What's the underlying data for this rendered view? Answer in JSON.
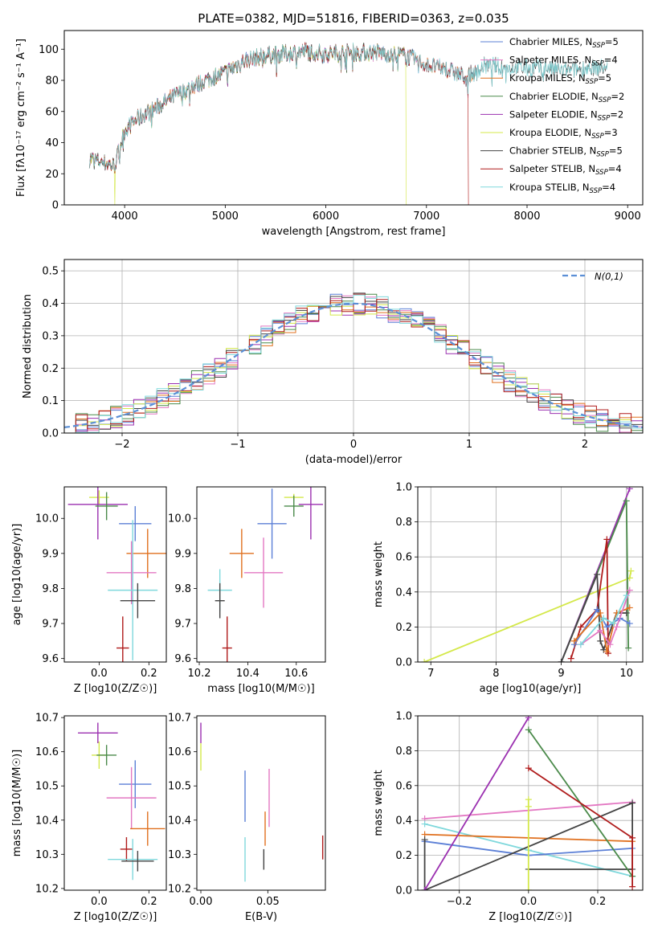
{
  "title": "PLATE=0382, MJD=51816, FIBERID=0363, z=0.035",
  "colors": {
    "chabrier_miles": "#5b7fd6",
    "salpeter_miles": "#e377c2",
    "kroupa_miles": "#e0701f",
    "chabrier_elodie": "#4a8a4a",
    "salpeter_elodie": "#9b30b0",
    "kroupa_elodie": "#d4e84a",
    "chabrier_stelib": "#444444",
    "salpeter_stelib": "#b01c1c",
    "kroupa_stelib": "#7fd8dc"
  },
  "chart_data": [
    {
      "id": "spectrum",
      "type": "line",
      "xlabel": "wavelength [Angstrom, rest frame]",
      "ylabel": "Flux [fλ10⁻¹⁷ erg cm⁻² s⁻¹ A⁻¹]",
      "xlim": [
        3400,
        9150
      ],
      "ylim": [
        0,
        112
      ],
      "xticks": [
        "4000",
        "5000",
        "6000",
        "7000",
        "8000",
        "9000"
      ],
      "yticks": [
        "0",
        "20",
        "40",
        "60",
        "80",
        "100"
      ],
      "legend": "top-right",
      "continuum": {
        "x": [
          3650,
          3800,
          3900,
          4000,
          4100,
          4300,
          4500,
          4800,
          5000,
          5200,
          5400,
          5600,
          5800,
          6000,
          6200,
          6500,
          6800,
          7000,
          7200,
          7400,
          7600,
          7800,
          8000,
          8200,
          8400,
          8600,
          8800
        ],
        "y": [
          30,
          27,
          25,
          48,
          54,
          62,
          70,
          80,
          85,
          93,
          96,
          97,
          99,
          97,
          98,
          98,
          96,
          90,
          87,
          82,
          90,
          88,
          88,
          88,
          86,
          88,
          88
        ]
      },
      "series": [
        {
          "name": "Chabrier MILES, N_SSP=5",
          "label": "Chabrier MILES, N",
          "sub": "SSP",
          "eq": "=5",
          "color_key": "chabrier_miles",
          "xmax": 7500
        },
        {
          "name": "Salpeter MILES, N_SSP=4",
          "label": "Salpeter MILES, N",
          "sub": "SSP",
          "eq": "=4",
          "color_key": "salpeter_miles",
          "xmax": 7500
        },
        {
          "name": "Kroupa MILES, N_SSP=5",
          "label": "Kroupa MILES, N",
          "sub": "SSP",
          "eq": "=5",
          "color_key": "kroupa_miles",
          "xmax": 7500
        },
        {
          "name": "Chabrier ELODIE, N_SSP=2",
          "label": "Chabrier ELODIE, N",
          "sub": "SSP",
          "eq": "=2",
          "color_key": "chabrier_elodie",
          "xmax": 6800
        },
        {
          "name": "Salpeter ELODIE, N_SSP=2",
          "label": "Salpeter ELODIE, N",
          "sub": "SSP",
          "eq": "=2",
          "color_key": "salpeter_elodie",
          "xmax": 6800
        },
        {
          "name": "Kroupa ELODIE, N_SSP=3",
          "label": "Kroupa ELODIE, N",
          "sub": "SSP",
          "eq": "=3",
          "color_key": "kroupa_elodie",
          "xmax": 6800,
          "drop_at": [
            3900,
            6800
          ]
        },
        {
          "name": "Chabrier STELIB, N_SSP=5",
          "label": "Chabrier STELIB, N",
          "sub": "SSP",
          "eq": "=5",
          "color_key": "chabrier_stelib",
          "xmax": 8800
        },
        {
          "name": "Salpeter STELIB, N_SSP=4",
          "label": "Salpeter STELIB, N",
          "sub": "SSP",
          "eq": "=4",
          "color_key": "salpeter_stelib",
          "xmax": 7420,
          "drop_at": [
            7420
          ]
        },
        {
          "name": "Kroupa STELIB, N_SSP=4",
          "label": "Kroupa STELIB, N",
          "sub": "SSP",
          "eq": "=4",
          "color_key": "kroupa_stelib",
          "xmax": 8800
        }
      ]
    },
    {
      "id": "residuals",
      "type": "line",
      "xlabel": "(data-model)/error",
      "ylabel": "Normed distribution",
      "xlim": [
        -2.5,
        2.5
      ],
      "ylim": [
        0,
        0.535
      ],
      "xticks": [
        "−2",
        "−1",
        "0",
        "1",
        "2"
      ],
      "yticks": [
        "0.0",
        "0.1",
        "0.2",
        "0.3",
        "0.4",
        "0.5"
      ],
      "grid": true,
      "legend": "top-right",
      "legend_label": "N(0,1)",
      "gaussian": {
        "mu": 0,
        "sigma": 1,
        "color": "#5b8fd6"
      }
    },
    {
      "id": "age_vs_z",
      "type": "scatter",
      "xlabel": "Z [log10(Z/Z☉)]",
      "ylabel": "age [log10(age/yr)]",
      "xlim": [
        -0.14,
        0.27
      ],
      "ylim": [
        9.59,
        10.09
      ],
      "xticks": [
        "0.0",
        "0.2"
      ],
      "yticks": [
        "9.6",
        "9.7",
        "9.8",
        "9.9",
        "10.0"
      ],
      "points": [
        {
          "color_key": "kroupa_elodie",
          "x": 0.0,
          "y": 10.06,
          "xerr": 0.04,
          "yerr": 0.02
        },
        {
          "color_key": "salpeter_elodie",
          "x": -0.005,
          "y": 10.04,
          "xerr": 0.12,
          "yerr": 0.1
        },
        {
          "color_key": "chabrier_elodie",
          "x": 0.03,
          "y": 10.035,
          "xerr": 0.045,
          "yerr": 0.04
        },
        {
          "color_key": "chabrier_miles",
          "x": 0.145,
          "y": 9.985,
          "xerr": 0.065,
          "yerr": 0.05
        },
        {
          "color_key": "kroupa_miles",
          "x": 0.195,
          "y": 9.9,
          "xerr": 0.085,
          "yerr": 0.07
        },
        {
          "color_key": "salpeter_miles",
          "x": 0.13,
          "y": 9.845,
          "xerr": 0.1,
          "yerr": 0.09
        },
        {
          "color_key": "kroupa_stelib",
          "x": 0.135,
          "y": 9.795,
          "xerr": 0.1,
          "yerr": 0.2
        },
        {
          "color_key": "chabrier_stelib",
          "x": 0.155,
          "y": 9.765,
          "xerr": 0.07,
          "yerr": 0.05
        },
        {
          "color_key": "salpeter_stelib",
          "x": 0.095,
          "y": 9.63,
          "xerr": 0.025,
          "yerr": 0.09
        }
      ]
    },
    {
      "id": "age_vs_mass",
      "type": "scatter",
      "xlabel": "mass [log10(M/M☉)]",
      "ylabel": "",
      "xlim": [
        10.19,
        10.72
      ],
      "ylim": [
        9.59,
        10.09
      ],
      "xticks": [
        "10.2",
        "10.4",
        "10.6"
      ],
      "yticks": [
        "9.6",
        "9.7",
        "9.8",
        "9.9",
        "10.0"
      ],
      "points": [
        {
          "color_key": "kroupa_elodie",
          "x": 10.59,
          "y": 10.06,
          "xerr": 0.04,
          "yerr": 0.01
        },
        {
          "color_key": "salpeter_elodie",
          "x": 10.66,
          "y": 10.04,
          "xerr": 0.05,
          "yerr": 0.1
        },
        {
          "color_key": "chabrier_elodie",
          "x": 10.59,
          "y": 10.035,
          "xerr": 0.04,
          "yerr": 0.03
        },
        {
          "color_key": "chabrier_miles",
          "x": 10.5,
          "y": 9.985,
          "xerr": 0.06,
          "yerr": 0.1
        },
        {
          "color_key": "kroupa_miles",
          "x": 10.375,
          "y": 9.9,
          "xerr": 0.05,
          "yerr": 0.07
        },
        {
          "color_key": "salpeter_miles",
          "x": 10.465,
          "y": 9.845,
          "xerr": 0.08,
          "yerr": 0.1
        },
        {
          "color_key": "kroupa_stelib",
          "x": 10.285,
          "y": 9.795,
          "xerr": 0.05,
          "yerr": 0.06
        },
        {
          "color_key": "chabrier_stelib",
          "x": 10.285,
          "y": 9.765,
          "xerr": 0.02,
          "yerr": 0.05
        },
        {
          "color_key": "salpeter_stelib",
          "x": 10.315,
          "y": 9.63,
          "xerr": 0.02,
          "yerr": 0.09
        }
      ]
    },
    {
      "id": "massweight_vs_age",
      "type": "line",
      "xlabel": "age [log10(age/yr)]",
      "ylabel": "mass weight",
      "xlim": [
        6.8,
        10.25
      ],
      "ylim": [
        0,
        1
      ],
      "xticks": [
        "7",
        "8",
        "9",
        "10"
      ],
      "yticks": [
        "0.0",
        "0.2",
        "0.4",
        "0.6",
        "0.8",
        "1.0"
      ],
      "grid": true,
      "series": [
        {
          "color_key": "kroupa_elodie",
          "x": [
            6.9,
            10.05,
            10.07
          ],
          "y": [
            0.0,
            0.48,
            0.52
          ]
        },
        {
          "color_key": "salpeter_elodie",
          "x": [
            9.0,
            10.05
          ],
          "y": [
            0.0,
            0.99
          ]
        },
        {
          "color_key": "chabrier_elodie",
          "x": [
            9.0,
            10.0,
            10.03
          ],
          "y": [
            0.0,
            0.92,
            0.08
          ]
        },
        {
          "color_key": "chabrier_stelib",
          "x": [
            9.0,
            9.55,
            9.6,
            9.65,
            9.85,
            10.0
          ],
          "y": [
            0.0,
            0.5,
            0.12,
            0.07,
            0.28,
            0.28
          ]
        },
        {
          "color_key": "salpeter_stelib",
          "x": [
            9.15,
            9.3,
            9.55,
            9.7,
            9.72
          ],
          "y": [
            0.02,
            0.2,
            0.3,
            0.7,
            0.05
          ]
        },
        {
          "color_key": "chabrier_miles",
          "x": [
            9.2,
            9.55,
            9.7,
            9.9,
            10.05
          ],
          "y": [
            0.1,
            0.3,
            0.2,
            0.25,
            0.22
          ]
        },
        {
          "color_key": "kroupa_miles",
          "x": [
            9.2,
            9.6,
            9.7,
            9.85,
            10.05
          ],
          "y": [
            0.12,
            0.28,
            0.06,
            0.28,
            0.31
          ]
        },
        {
          "color_key": "salpeter_miles",
          "x": [
            9.3,
            9.6,
            9.75,
            9.85,
            10.05
          ],
          "y": [
            0.1,
            0.18,
            0.1,
            0.2,
            0.41
          ]
        },
        {
          "color_key": "kroupa_stelib",
          "x": [
            9.3,
            9.65,
            9.8,
            10.0
          ],
          "y": [
            0.1,
            0.25,
            0.22,
            0.38
          ]
        }
      ]
    },
    {
      "id": "mass_vs_z",
      "type": "scatter",
      "xlabel": "Z [log10(Z/Z☉)]",
      "ylabel": "mass [log10(M/M☉)]",
      "xlim": [
        -0.14,
        0.27
      ],
      "ylim": [
        10.195,
        10.705
      ],
      "xticks": [
        "0.0",
        "0.2"
      ],
      "yticks": [
        "10.2",
        "10.3",
        "10.4",
        "10.5",
        "10.6",
        "10.7"
      ],
      "points": [
        {
          "color_key": "salpeter_elodie",
          "x": -0.005,
          "y": 10.655,
          "xerr": 0.08,
          "yerr": 0.03
        },
        {
          "color_key": "kroupa_elodie",
          "x": 0.0,
          "y": 10.59,
          "xerr": 0.03,
          "yerr": 0.04
        },
        {
          "color_key": "chabrier_elodie",
          "x": 0.03,
          "y": 10.59,
          "xerr": 0.04,
          "yerr": 0.03
        },
        {
          "color_key": "chabrier_miles",
          "x": 0.145,
          "y": 10.505,
          "xerr": 0.065,
          "yerr": 0.07
        },
        {
          "color_key": "salpeter_miles",
          "x": 0.13,
          "y": 10.465,
          "xerr": 0.1,
          "yerr": 0.09
        },
        {
          "color_key": "kroupa_miles",
          "x": 0.195,
          "y": 10.375,
          "xerr": 0.07,
          "yerr": 0.05
        },
        {
          "color_key": "salpeter_stelib",
          "x": 0.11,
          "y": 10.315,
          "xerr": 0.025,
          "yerr": 0.035
        },
        {
          "color_key": "kroupa_stelib",
          "x": 0.135,
          "y": 10.285,
          "xerr": 0.1,
          "yerr": 0.06
        },
        {
          "color_key": "chabrier_stelib",
          "x": 0.155,
          "y": 10.28,
          "xerr": 0.065,
          "yerr": 0.03
        }
      ]
    },
    {
      "id": "mass_vs_ebv",
      "type": "scatter",
      "xlabel": "E(B-V)",
      "ylabel": "",
      "xlim": [
        -0.003,
        0.093
      ],
      "ylim": [
        10.195,
        10.705
      ],
      "xticks": [
        "0.00",
        "0.05"
      ],
      "yticks": [
        "10.2",
        "10.3",
        "10.4",
        "10.5",
        "10.6",
        "10.7"
      ],
      "points": [
        {
          "color_key": "salpeter_elodie",
          "x": 0.0,
          "y": 10.655,
          "yerr": 0.03
        },
        {
          "color_key": "kroupa_elodie",
          "x": 0.0,
          "y": 10.585,
          "yerr": 0.04
        },
        {
          "color_key": "chabrier_miles",
          "x": 0.033,
          "y": 10.47,
          "yerr": 0.075
        },
        {
          "color_key": "salpeter_miles",
          "x": 0.051,
          "y": 10.465,
          "yerr": 0.085
        },
        {
          "color_key": "kroupa_miles",
          "x": 0.048,
          "y": 10.375,
          "yerr": 0.05
        },
        {
          "color_key": "kroupa_stelib",
          "x": 0.033,
          "y": 10.285,
          "yerr": 0.065
        },
        {
          "color_key": "chabrier_stelib",
          "x": 0.047,
          "y": 10.285,
          "yerr": 0.03
        },
        {
          "color_key": "salpeter_stelib",
          "x": 0.091,
          "y": 10.32,
          "yerr": 0.035
        }
      ]
    },
    {
      "id": "massweight_vs_z",
      "type": "line",
      "xlabel": "Z [log10(Z/Z☉)]",
      "ylabel": "mass weight",
      "xlim": [
        -0.32,
        0.33
      ],
      "ylim": [
        0,
        1
      ],
      "xticks": [
        "−0.2",
        "0.0",
        "0.2"
      ],
      "yticks": [
        "0.0",
        "0.2",
        "0.4",
        "0.6",
        "0.8",
        "1.0"
      ],
      "grid": true,
      "series": [
        {
          "color_key": "salpeter_miles",
          "x": [
            -0.3,
            0.3
          ],
          "y": [
            0.41,
            0.505
          ]
        },
        {
          "color_key": "kroupa_stelib",
          "x": [
            -0.3,
            0.0,
            0.3
          ],
          "y": [
            0.38,
            0.23,
            0.08
          ]
        },
        {
          "color_key": "kroupa_miles",
          "x": [
            -0.3,
            0.3
          ],
          "y": [
            0.32,
            0.28
          ]
        },
        {
          "color_key": "chabrier_miles",
          "x": [
            -0.3,
            0.0,
            0.3
          ],
          "y": [
            0.28,
            0.2,
            0.24
          ]
        },
        {
          "color_key": "chabrier_stelib",
          "x": [
            -0.3,
            -0.3,
            0.3,
            0.3,
            0.0
          ],
          "y": [
            0.29,
            0.0,
            0.5,
            0.12,
            0.12
          ]
        },
        {
          "color_key": "salpeter_elodie",
          "x": [
            -0.3,
            0.0
          ],
          "y": [
            0.0,
            0.99
          ]
        },
        {
          "color_key": "chabrier_elodie",
          "x": [
            0.0,
            0.3
          ],
          "y": [
            0.92,
            0.08
          ]
        },
        {
          "color_key": "salpeter_stelib",
          "x": [
            0.0,
            0.3,
            0.3
          ],
          "y": [
            0.7,
            0.3,
            0.02
          ]
        },
        {
          "color_key": "kroupa_elodie",
          "x": [
            0.0,
            0.0,
            0.0
          ],
          "y": [
            0.52,
            0.48,
            0.0
          ]
        }
      ]
    }
  ]
}
